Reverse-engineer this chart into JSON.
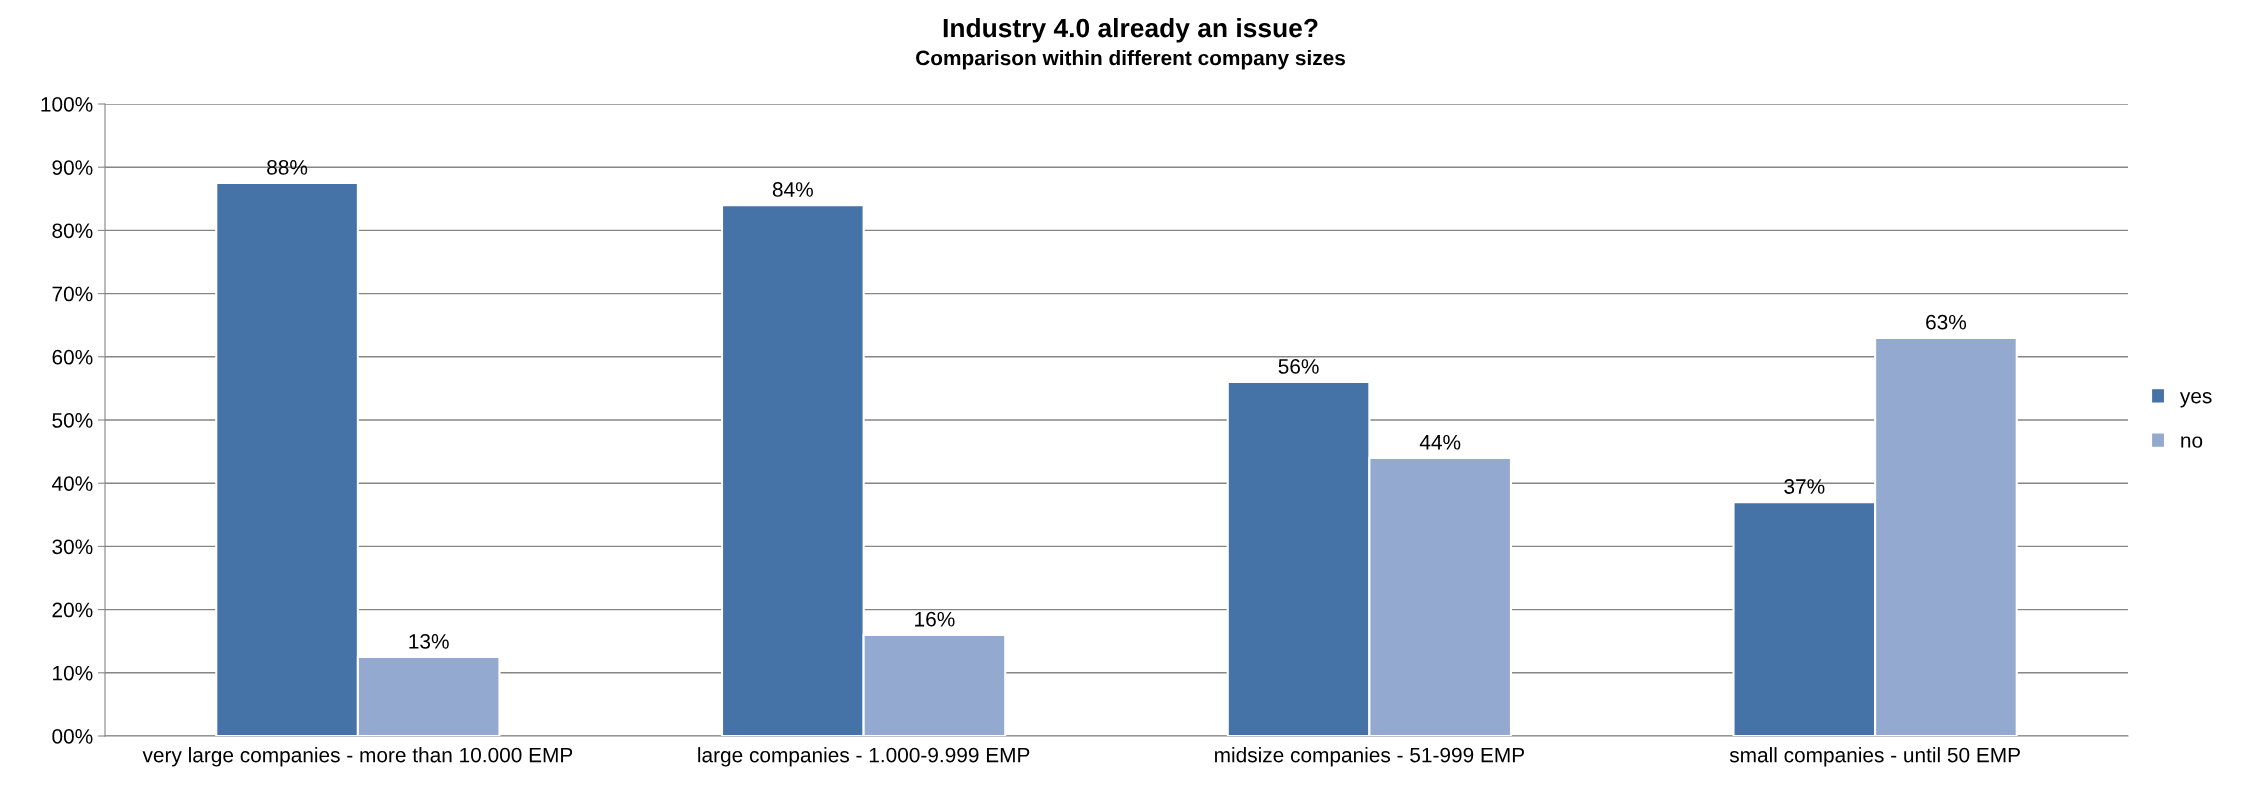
{
  "chart_data": {
    "type": "bar",
    "title": "Industry 4.0 already an issue?",
    "subtitle": "Comparison within different company sizes",
    "categories": [
      "very large companies - more than 10.000 EMP",
      "large companies - 1.000-9.999 EMP",
      "midsize companies - 51-999 EMP",
      "small companies - until 50 EMP"
    ],
    "series": [
      {
        "name": "yes",
        "color": "#4572a7",
        "values": [
          87.5,
          84,
          56,
          37
        ],
        "value_labels": [
          "88%",
          "84%",
          "56%",
          "37%"
        ]
      },
      {
        "name": "no",
        "color": "#93a9cf",
        "values": [
          12.5,
          16,
          44,
          63
        ],
        "value_labels": [
          "13%",
          "16%",
          "44%",
          "63%"
        ]
      }
    ],
    "ylim": [
      0,
      100
    ],
    "yticks": [
      {
        "value": 0,
        "label": "00%"
      },
      {
        "value": 10,
        "label": "10%"
      },
      {
        "value": 20,
        "label": "20%"
      },
      {
        "value": 30,
        "label": "30%"
      },
      {
        "value": 40,
        "label": "40%"
      },
      {
        "value": 50,
        "label": "50%"
      },
      {
        "value": 60,
        "label": "60%"
      },
      {
        "value": 70,
        "label": "70%"
      },
      {
        "value": 80,
        "label": "80%"
      },
      {
        "value": 90,
        "label": "90%"
      },
      {
        "value": 100,
        "label": "100%"
      }
    ],
    "grid": "y",
    "legend": "right"
  }
}
